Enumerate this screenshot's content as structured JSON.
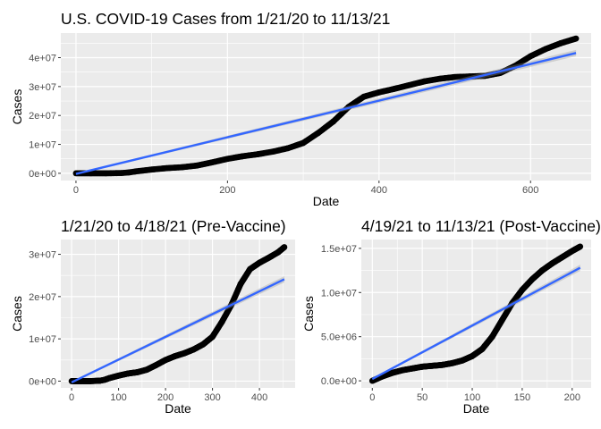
{
  "chart_data": [
    {
      "type": "scatter",
      "title": "U.S. COVID-19 Cases from 1/21/20 to 11/13/21",
      "xlabel": "Date",
      "ylabel": "Cases",
      "xlim": [
        -20,
        680
      ],
      "ylim": [
        -2500000,
        48500000
      ],
      "xticks": [
        0,
        200,
        400,
        600
      ],
      "xtick_labels": [
        "0",
        "200",
        "400",
        "600"
      ],
      "yticks": [
        0,
        10000000,
        20000000,
        30000000,
        40000000
      ],
      "ytick_labels": [
        "0e+00",
        "1e+07",
        "2e+07",
        "3e+07",
        "4e+07"
      ],
      "grid": true,
      "series": [
        {
          "kind": "points",
          "color": "#000000",
          "x": [
            0,
            20,
            40,
            60,
            70,
            80,
            100,
            120,
            140,
            160,
            180,
            200,
            220,
            240,
            260,
            280,
            300,
            320,
            340,
            360,
            380,
            400,
            420,
            440,
            460,
            480,
            500,
            520,
            540,
            560,
            580,
            600,
            620,
            640,
            660
          ],
          "y": [
            0,
            0,
            0,
            100000,
            300000,
            700000,
            1300000,
            1800000,
            2100000,
            2700000,
            3800000,
            5000000,
            5900000,
            6600000,
            7500000,
            8700000,
            10500000,
            14000000,
            18000000,
            23000000,
            26500000,
            28000000,
            29200000,
            30500000,
            31800000,
            32700000,
            33300000,
            33500000,
            33700000,
            34700000,
            37200000,
            40500000,
            43000000,
            45000000,
            46600000
          ]
        },
        {
          "kind": "linear-fit",
          "color": "#3366FF",
          "x": [
            0,
            660
          ],
          "y": [
            -200000,
            41600000
          ]
        }
      ]
    },
    {
      "type": "scatter",
      "title": "1/21/20 to 4/18/21 (Pre-Vaccine)",
      "xlabel": "Date",
      "ylabel": "Cases",
      "xlim": [
        -23,
        476
      ],
      "ylim": [
        -1600000,
        33500000
      ],
      "xticks": [
        0,
        100,
        200,
        300,
        400
      ],
      "xtick_labels": [
        "0",
        "100",
        "200",
        "300",
        "400"
      ],
      "yticks": [
        0,
        10000000,
        20000000,
        30000000
      ],
      "ytick_labels": [
        "0e+00",
        "1e+07",
        "2e+07",
        "3e+07"
      ],
      "grid": true,
      "series": [
        {
          "kind": "points",
          "color": "#000000",
          "x": [
            0,
            20,
            40,
            60,
            70,
            80,
            100,
            120,
            140,
            160,
            180,
            200,
            220,
            240,
            260,
            280,
            300,
            320,
            340,
            360,
            380,
            400,
            420,
            440,
            453
          ],
          "y": [
            0,
            0,
            0,
            100000,
            300000,
            700000,
            1300000,
            1800000,
            2100000,
            2700000,
            3800000,
            5000000,
            5900000,
            6600000,
            7500000,
            8700000,
            10500000,
            14000000,
            18000000,
            23000000,
            26500000,
            28000000,
            29200000,
            30500000,
            31700000
          ]
        },
        {
          "kind": "linear-fit",
          "color": "#3366FF",
          "x": [
            0,
            453
          ],
          "y": [
            -300000,
            24100000
          ]
        }
      ]
    },
    {
      "type": "scatter",
      "title": "4/19/21 to 11/13/21 (Post-Vaccine)",
      "xlabel": "Date",
      "ylabel": "Cases",
      "xlim": [
        -11,
        219
      ],
      "ylim": [
        -800000,
        16000000
      ],
      "xticks": [
        0,
        50,
        100,
        150,
        200
      ],
      "xtick_labels": [
        "0",
        "50",
        "100",
        "150",
        "200"
      ],
      "yticks": [
        0,
        5000000,
        10000000,
        15000000
      ],
      "ytick_labels": [
        "0.0e+00",
        "5.0e+06",
        "1.0e+07",
        "1.5e+07"
      ],
      "grid": true,
      "series": [
        {
          "kind": "points",
          "color": "#000000",
          "x": [
            0,
            10,
            20,
            30,
            40,
            50,
            60,
            70,
            80,
            90,
            100,
            110,
            120,
            130,
            140,
            150,
            160,
            170,
            180,
            190,
            200,
            208
          ],
          "y": [
            0,
            500000,
            900000,
            1200000,
            1400000,
            1600000,
            1700000,
            1800000,
            2000000,
            2300000,
            2800000,
            3600000,
            5000000,
            6900000,
            8800000,
            10300000,
            11500000,
            12500000,
            13300000,
            14000000,
            14700000,
            15200000
          ]
        },
        {
          "kind": "linear-fit",
          "color": "#3366FF",
          "x": [
            0,
            208
          ],
          "y": [
            200000,
            12800000
          ]
        }
      ]
    }
  ]
}
